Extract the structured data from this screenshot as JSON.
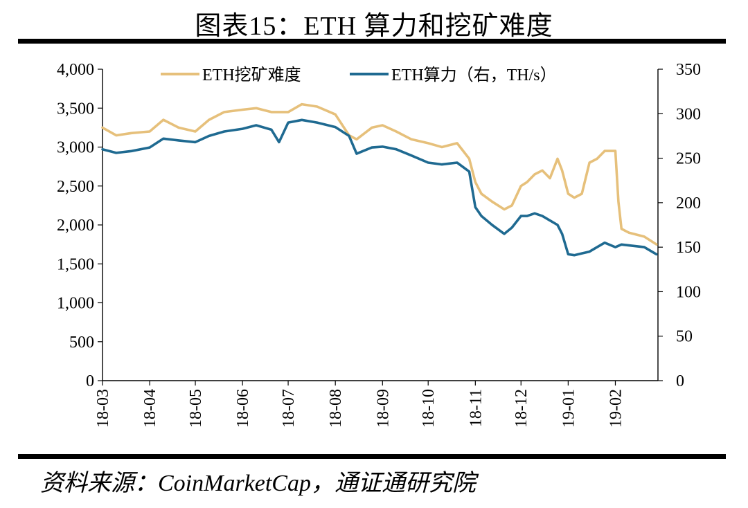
{
  "title": "图表15：ETH 算力和挖矿难度",
  "source": "资料来源：CoinMarketCap，通证通研究院",
  "chart_data": {
    "type": "line",
    "x_tick_labels": [
      "18-03",
      "18-04",
      "18-05",
      "18-06",
      "18-07",
      "18-08",
      "18-09",
      "18-10",
      "18-11",
      "18-12",
      "19-01",
      "19-02"
    ],
    "x_range": [
      "2018-03-01",
      "2019-02-28"
    ],
    "y_left": {
      "range": [
        0,
        4000
      ],
      "ticks": [
        0,
        500,
        1000,
        1500,
        2000,
        2500,
        3000,
        3500,
        4000
      ],
      "tick_labels": [
        "0",
        "500",
        "1,000",
        "1,500",
        "2,000",
        "2,500",
        "3,000",
        "3,500",
        "4,000"
      ]
    },
    "y_right": {
      "range": [
        0,
        350
      ],
      "ticks": [
        0,
        50,
        100,
        150,
        200,
        250,
        300,
        350
      ],
      "tick_labels": [
        "0",
        "50",
        "100",
        "150",
        "200",
        "250",
        "300",
        "350"
      ]
    },
    "legend_position": "top",
    "grid": false,
    "series": [
      {
        "name": "ETH挖矿难度",
        "axis": "left",
        "color": "#E6C07B",
        "x": [
          "2018-03-01",
          "2018-03-10",
          "2018-03-20",
          "2018-04-01",
          "2018-04-10",
          "2018-04-20",
          "2018-05-01",
          "2018-05-10",
          "2018-05-20",
          "2018-06-01",
          "2018-06-10",
          "2018-06-20",
          "2018-07-01",
          "2018-07-10",
          "2018-07-20",
          "2018-08-01",
          "2018-08-10",
          "2018-08-15",
          "2018-08-25",
          "2018-09-01",
          "2018-09-10",
          "2018-09-20",
          "2018-10-01",
          "2018-10-10",
          "2018-10-20",
          "2018-10-28",
          "2018-11-01",
          "2018-11-05",
          "2018-11-12",
          "2018-11-20",
          "2018-11-25",
          "2018-12-01",
          "2018-12-05",
          "2018-12-10",
          "2018-12-15",
          "2018-12-20",
          "2018-12-25",
          "2018-12-28",
          "2019-01-01",
          "2019-01-05",
          "2019-01-10",
          "2019-01-15",
          "2019-01-20",
          "2019-01-25",
          "2019-02-01",
          "2019-02-03",
          "2019-02-05",
          "2019-02-10",
          "2019-02-20",
          "2019-02-28"
        ],
        "values": [
          3250,
          3150,
          3180,
          3200,
          3350,
          3250,
          3200,
          3350,
          3450,
          3480,
          3500,
          3450,
          3450,
          3550,
          3520,
          3420,
          3150,
          3100,
          3250,
          3280,
          3200,
          3100,
          3050,
          3000,
          3050,
          2850,
          2550,
          2400,
          2300,
          2200,
          2250,
          2500,
          2550,
          2650,
          2700,
          2600,
          2850,
          2700,
          2400,
          2350,
          2400,
          2800,
          2850,
          2950,
          2950,
          2300,
          1950,
          1900,
          1850,
          1750
        ]
      },
      {
        "name": "ETH算力（右，TH/s）",
        "axis": "right",
        "color": "#1F6A91",
        "x": [
          "2018-03-01",
          "2018-03-10",
          "2018-03-20",
          "2018-04-01",
          "2018-04-10",
          "2018-04-20",
          "2018-05-01",
          "2018-05-10",
          "2018-05-20",
          "2018-06-01",
          "2018-06-10",
          "2018-06-20",
          "2018-06-25",
          "2018-07-01",
          "2018-07-10",
          "2018-07-20",
          "2018-08-01",
          "2018-08-10",
          "2018-08-15",
          "2018-08-25",
          "2018-09-01",
          "2018-09-10",
          "2018-09-20",
          "2018-10-01",
          "2018-10-10",
          "2018-10-20",
          "2018-10-28",
          "2018-11-01",
          "2018-11-05",
          "2018-11-12",
          "2018-11-20",
          "2018-11-25",
          "2018-12-01",
          "2018-12-05",
          "2018-12-10",
          "2018-12-15",
          "2018-12-20",
          "2018-12-25",
          "2018-12-28",
          "2019-01-01",
          "2019-01-05",
          "2019-01-10",
          "2019-01-15",
          "2019-01-20",
          "2019-01-25",
          "2019-02-01",
          "2019-02-05",
          "2019-02-10",
          "2019-02-20",
          "2019-02-28"
        ],
        "values": [
          260,
          256,
          258,
          262,
          272,
          270,
          268,
          275,
          280,
          283,
          287,
          282,
          268,
          290,
          293,
          290,
          285,
          275,
          255,
          262,
          263,
          260,
          253,
          245,
          243,
          245,
          235,
          195,
          185,
          175,
          165,
          172,
          185,
          185,
          188,
          185,
          180,
          175,
          165,
          142,
          141,
          143,
          145,
          150,
          155,
          150,
          153,
          152,
          150,
          142
        ]
      }
    ]
  }
}
